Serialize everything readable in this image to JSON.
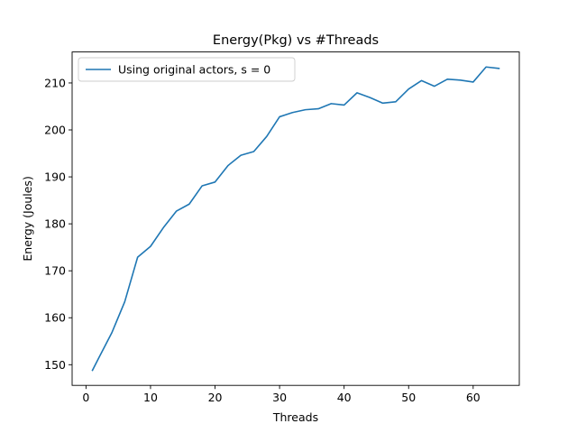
{
  "chart_data": {
    "type": "line",
    "title": "Energy(Pkg) vs #Threads",
    "xlabel": "Threads",
    "ylabel": "Energy (Joules)",
    "xlim": [
      -2.15,
      67.15
    ],
    "ylim": [
      145.6,
      216.6
    ],
    "xticks": [
      0,
      10,
      20,
      30,
      40,
      50,
      60
    ],
    "yticks": [
      150,
      160,
      170,
      180,
      190,
      200,
      210
    ],
    "grid": false,
    "legend_position": "upper-left",
    "series": [
      {
        "name": "Using original actors, s = 0",
        "color": "#1f77b4",
        "x": [
          1,
          2,
          4,
          6,
          8,
          10,
          12,
          14,
          16,
          18,
          20,
          22,
          24,
          26,
          28,
          30,
          32,
          34,
          36,
          38,
          40,
          42,
          44,
          46,
          48,
          50,
          52,
          54,
          56,
          58,
          60,
          62,
          64
        ],
        "y": [
          148.8,
          151.5,
          156.8,
          163.4,
          172.9,
          175.2,
          179.2,
          182.7,
          184.2,
          188.1,
          188.9,
          192.4,
          194.6,
          195.4,
          198.6,
          202.8,
          203.7,
          204.3,
          204.5,
          205.6,
          205.3,
          207.9,
          206.9,
          205.7,
          206.0,
          208.7,
          210.5,
          209.3,
          210.8,
          210.6,
          210.2,
          213.4,
          213.1
        ]
      }
    ]
  }
}
